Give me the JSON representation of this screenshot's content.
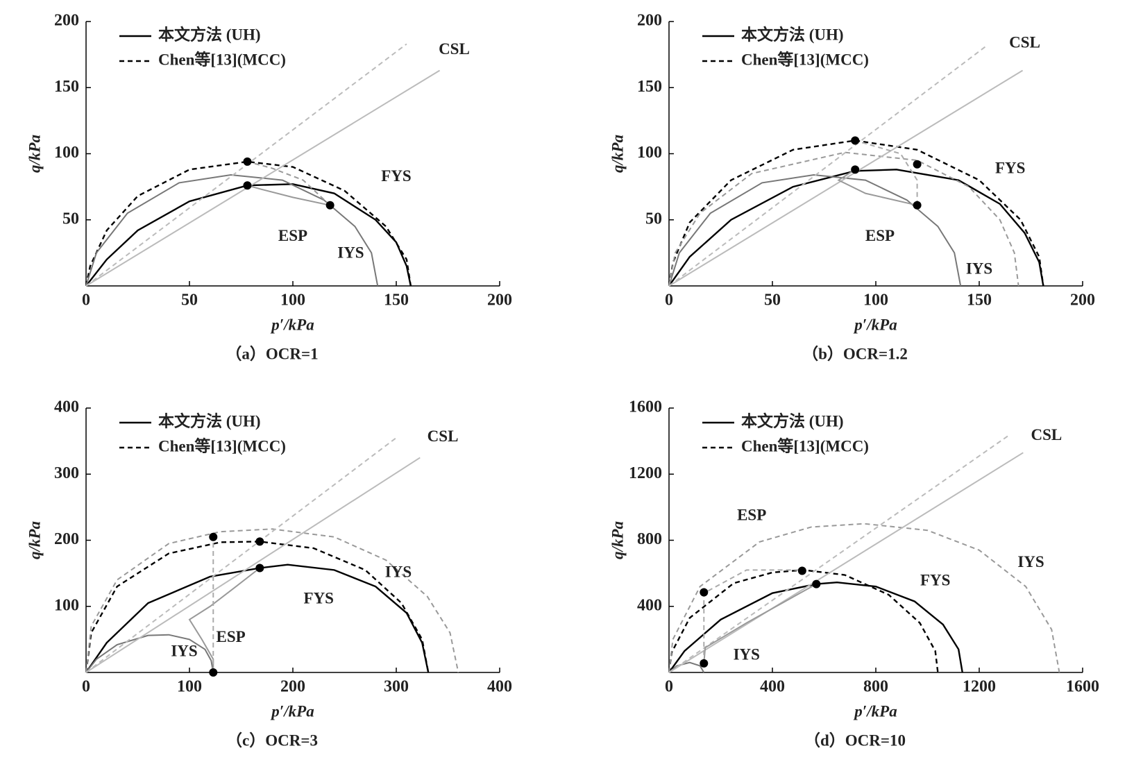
{
  "chart_data": [
    {
      "type": "line",
      "caption": "（a）OCR=1",
      "xlabel": "p′/kPa",
      "ylabel": "q/kPa",
      "xlim": [
        0,
        200
      ],
      "ylim": [
        0,
        200
      ],
      "xticks": [
        0,
        50,
        100,
        150,
        200
      ],
      "yticks": [
        50,
        100,
        150,
        200
      ],
      "series": [
        {
          "name": "本文方法 (UH)",
          "color": "#000",
          "dash": false,
          "x": [
            0,
            10,
            25,
            50,
            78,
            100,
            120,
            140,
            150,
            155,
            157
          ],
          "y": [
            0,
            20,
            42,
            64,
            76,
            77,
            70,
            50,
            33,
            15,
            0
          ]
        },
        {
          "name": "Chen等[13](MCC)",
          "color": "#000",
          "dash": true,
          "x": [
            0,
            2,
            10,
            25,
            50,
            78,
            100,
            125,
            145,
            155,
            157
          ],
          "y": [
            0,
            15,
            42,
            68,
            88,
            94,
            90,
            72,
            45,
            20,
            0
          ]
        },
        {
          "color": "#777",
          "dash": false,
          "x": [
            0,
            5,
            20,
            45,
            70,
            95,
            115,
            130,
            138,
            141
          ],
          "y": [
            0,
            25,
            55,
            78,
            84,
            80,
            65,
            45,
            25,
            0
          ]
        },
        {
          "color": "#bbb",
          "dash": false,
          "x": [
            0,
            171
          ],
          "y": [
            0,
            163
          ]
        },
        {
          "color": "#bbb",
          "dash": true,
          "x": [
            0,
            155
          ],
          "y": [
            0,
            183
          ]
        },
        {
          "color": "#999",
          "dash": false,
          "x": [
            118,
            100,
            85,
            78
          ],
          "y": [
            61,
            67,
            73,
            76
          ]
        },
        {
          "color": "#999",
          "dash": true,
          "x": [
            118,
            105,
            90,
            78
          ],
          "y": [
            61,
            80,
            89,
            94
          ]
        }
      ],
      "points": {
        "x": [
          78,
          78,
          118
        ],
        "y": [
          94,
          76,
          61
        ]
      },
      "annotations": [
        "CSL",
        "FYS",
        "ESP",
        "IYS"
      ]
    },
    {
      "type": "line",
      "caption": "（b）OCR=1.2",
      "xlabel": "p′/kPa",
      "ylabel": "q/kPa",
      "xlim": [
        0,
        200
      ],
      "ylim": [
        0,
        200
      ],
      "xticks": [
        0,
        50,
        100,
        150,
        200
      ],
      "yticks": [
        50,
        100,
        150,
        200
      ],
      "series": [
        {
          "name": "本文方法 (UH)",
          "color": "#000",
          "dash": false,
          "x": [
            0,
            10,
            30,
            60,
            90,
            110,
            140,
            160,
            172,
            179,
            181
          ],
          "y": [
            0,
            22,
            50,
            75,
            87,
            88,
            80,
            62,
            40,
            18,
            0
          ]
        },
        {
          "name": "Chen等[13](MCC)",
          "color": "#000",
          "dash": true,
          "x": [
            0,
            2,
            10,
            30,
            60,
            90,
            120,
            150,
            170,
            179,
            181
          ],
          "y": [
            0,
            18,
            48,
            80,
            103,
            110,
            103,
            80,
            50,
            22,
            0
          ]
        },
        {
          "color": "#777",
          "dash": false,
          "x": [
            0,
            5,
            20,
            45,
            70,
            95,
            115,
            130,
            138,
            141
          ],
          "y": [
            0,
            25,
            55,
            78,
            84,
            80,
            65,
            45,
            25,
            0
          ]
        },
        {
          "color": "#999",
          "dash": true,
          "x": [
            0,
            3,
            15,
            40,
            85,
            120,
            145,
            160,
            167,
            169
          ],
          "y": [
            0,
            25,
            55,
            85,
            101,
            95,
            75,
            50,
            25,
            0
          ]
        },
        {
          "color": "#bbb",
          "dash": false,
          "x": [
            0,
            171
          ],
          "y": [
            0,
            163
          ]
        },
        {
          "color": "#bbb",
          "dash": true,
          "x": [
            0,
            153
          ],
          "y": [
            0,
            181
          ]
        },
        {
          "color": "#999",
          "dash": false,
          "x": [
            120,
            95,
            82,
            90
          ],
          "y": [
            61,
            70,
            80,
            88
          ]
        },
        {
          "color": "#aaa",
          "dash": true,
          "x": [
            120,
            120,
            112,
            90
          ],
          "y": [
            61,
            80,
            100,
            110
          ]
        }
      ],
      "points": {
        "x": [
          90,
          90,
          120,
          120
        ],
        "y": [
          110,
          88,
          92,
          61
        ]
      },
      "annotations": [
        "CSL",
        "FYS",
        "ESP",
        "IYS"
      ]
    },
    {
      "type": "line",
      "caption": "（c）OCR=3",
      "xlabel": "p′/kPa",
      "ylabel": "q/kPa",
      "xlim": [
        0,
        400
      ],
      "ylim": [
        0,
        400
      ],
      "xticks": [
        0,
        100,
        200,
        300,
        400
      ],
      "yticks": [
        100,
        200,
        300,
        400
      ],
      "series": [
        {
          "name": "本文方法 (UH)",
          "color": "#000",
          "dash": false,
          "x": [
            0,
            20,
            60,
            120,
            168,
            195,
            240,
            280,
            310,
            325,
            331
          ],
          "y": [
            0,
            45,
            105,
            145,
            158,
            163,
            155,
            130,
            90,
            45,
            0
          ]
        },
        {
          "name": "Chen等[13](MCC)",
          "color": "#000",
          "dash": true,
          "x": [
            0,
            5,
            30,
            80,
            130,
            168,
            220,
            270,
            305,
            325,
            331
          ],
          "y": [
            0,
            60,
            130,
            180,
            197,
            198,
            188,
            155,
            105,
            50,
            0
          ]
        },
        {
          "color": "#777",
          "dash": false,
          "x": [
            0,
            10,
            30,
            60,
            80,
            100,
            115,
            121,
            123
          ],
          "y": [
            0,
            20,
            42,
            56,
            57,
            50,
            35,
            18,
            0
          ]
        },
        {
          "color": "#999",
          "dash": true,
          "x": [
            0,
            5,
            30,
            80,
            130,
            180,
            240,
            290,
            330,
            352,
            360
          ],
          "y": [
            0,
            70,
            140,
            195,
            213,
            217,
            205,
            170,
            115,
            60,
            0
          ]
        },
        {
          "color": "#bbb",
          "dash": false,
          "x": [
            0,
            323
          ],
          "y": [
            0,
            325
          ]
        },
        {
          "color": "#bbb",
          "dash": true,
          "x": [
            0,
            300
          ],
          "y": [
            0,
            355
          ]
        },
        {
          "color": "#999",
          "dash": false,
          "x": [
            123,
            123,
            112,
            100,
            120,
            145,
            168
          ],
          "y": [
            0,
            20,
            50,
            80,
            100,
            130,
            158
          ]
        },
        {
          "color": "#aaa",
          "dash": true,
          "x": [
            123,
            123,
            123
          ],
          "y": [
            0,
            140,
            205
          ]
        }
      ],
      "points": {
        "x": [
          123,
          168,
          168,
          123
        ],
        "y": [
          205,
          198,
          158,
          0
        ]
      },
      "annotations": [
        "CSL",
        "IYS",
        "FYS",
        "ESP",
        "IYS"
      ]
    },
    {
      "type": "line",
      "caption": "（d）OCR=10",
      "xlabel": "p′/kPa",
      "ylabel": "q/kPa",
      "xlim": [
        0,
        1600
      ],
      "ylim": [
        0,
        1600
      ],
      "xticks": [
        0,
        400,
        800,
        1200,
        1600
      ],
      "yticks": [
        400,
        800,
        1200,
        1600
      ],
      "series": [
        {
          "name": "本文方法 (UH)",
          "color": "#000",
          "dash": false,
          "x": [
            0,
            60,
            200,
            400,
            570,
            650,
            800,
            950,
            1060,
            1120,
            1135
          ],
          "y": [
            0,
            130,
            320,
            480,
            535,
            545,
            520,
            430,
            290,
            140,
            0
          ]
        },
        {
          "name": "Chen等[13](MCC)",
          "color": "#000",
          "dash": true,
          "x": [
            0,
            10,
            80,
            250,
            400,
            520,
            680,
            850,
            970,
            1030,
            1040
          ],
          "y": [
            0,
            120,
            330,
            540,
            605,
            620,
            590,
            470,
            300,
            130,
            0
          ]
        },
        {
          "color": "#777",
          "dash": false,
          "x": [
            0,
            30,
            80,
            120,
            135
          ],
          "y": [
            0,
            40,
            60,
            40,
            0
          ]
        },
        {
          "color": "#999",
          "dash": true,
          "x": [
            0,
            15,
            120,
            350,
            550,
            755,
            1000,
            1200,
            1380,
            1480,
            1510
          ],
          "y": [
            0,
            200,
            520,
            790,
            880,
            900,
            860,
            740,
            520,
            260,
            0
          ]
        },
        {
          "color": "#bbb",
          "dash": false,
          "x": [
            0,
            1370
          ],
          "y": [
            0,
            1330
          ]
        },
        {
          "color": "#bbb",
          "dash": true,
          "x": [
            0,
            1310
          ],
          "y": [
            0,
            1430
          ]
        },
        {
          "color": "#999",
          "dash": false,
          "x": [
            135,
            140,
            300,
            570
          ],
          "y": [
            55,
            150,
            300,
            535
          ]
        },
        {
          "color": "#aaa",
          "dash": true,
          "x": [
            135,
            135,
            300,
            520
          ],
          "y": [
            55,
            480,
            620,
            620
          ]
        }
      ],
      "points": {
        "x": [
          135,
          515,
          570,
          135
        ],
        "y": [
          485,
          615,
          535,
          55
        ]
      },
      "annotations": [
        "CSL",
        "ESP",
        "FYS",
        "IYS",
        "IYS"
      ]
    }
  ]
}
